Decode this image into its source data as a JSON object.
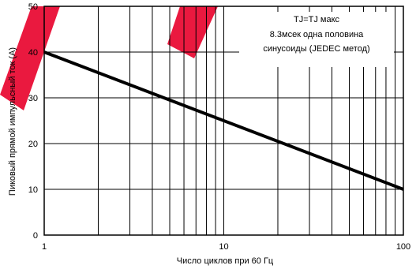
{
  "chart_data": {
    "type": "line",
    "title": "",
    "xlabel": "Число циклов при 60 Гц",
    "ylabel": "Пиковый прямой импульсный ток (А)",
    "x_scale": "log",
    "xlim": [
      1,
      100
    ],
    "ylim": [
      0,
      50
    ],
    "grid": true,
    "x_ticks": [
      1,
      10,
      100
    ],
    "x_tick_labels": [
      "1",
      "10",
      "100"
    ],
    "y_ticks": [
      0,
      10,
      20,
      30,
      40,
      50
    ],
    "y_tick_labels": [
      "0",
      "10",
      "20",
      "30",
      "40",
      "50"
    ],
    "series": [
      {
        "x": [
          1,
          100
        ],
        "y": [
          40,
          10
        ]
      }
    ],
    "annotation": {
      "line1": "TJ=TJ макс",
      "line2": "8.3мсек одна половина",
      "line3": "синусоиды (JEDEC метод)"
    },
    "colors": {
      "line": "#000000",
      "grid": "#000000",
      "background": "#ffffff",
      "watermark": "#e8002a"
    }
  }
}
